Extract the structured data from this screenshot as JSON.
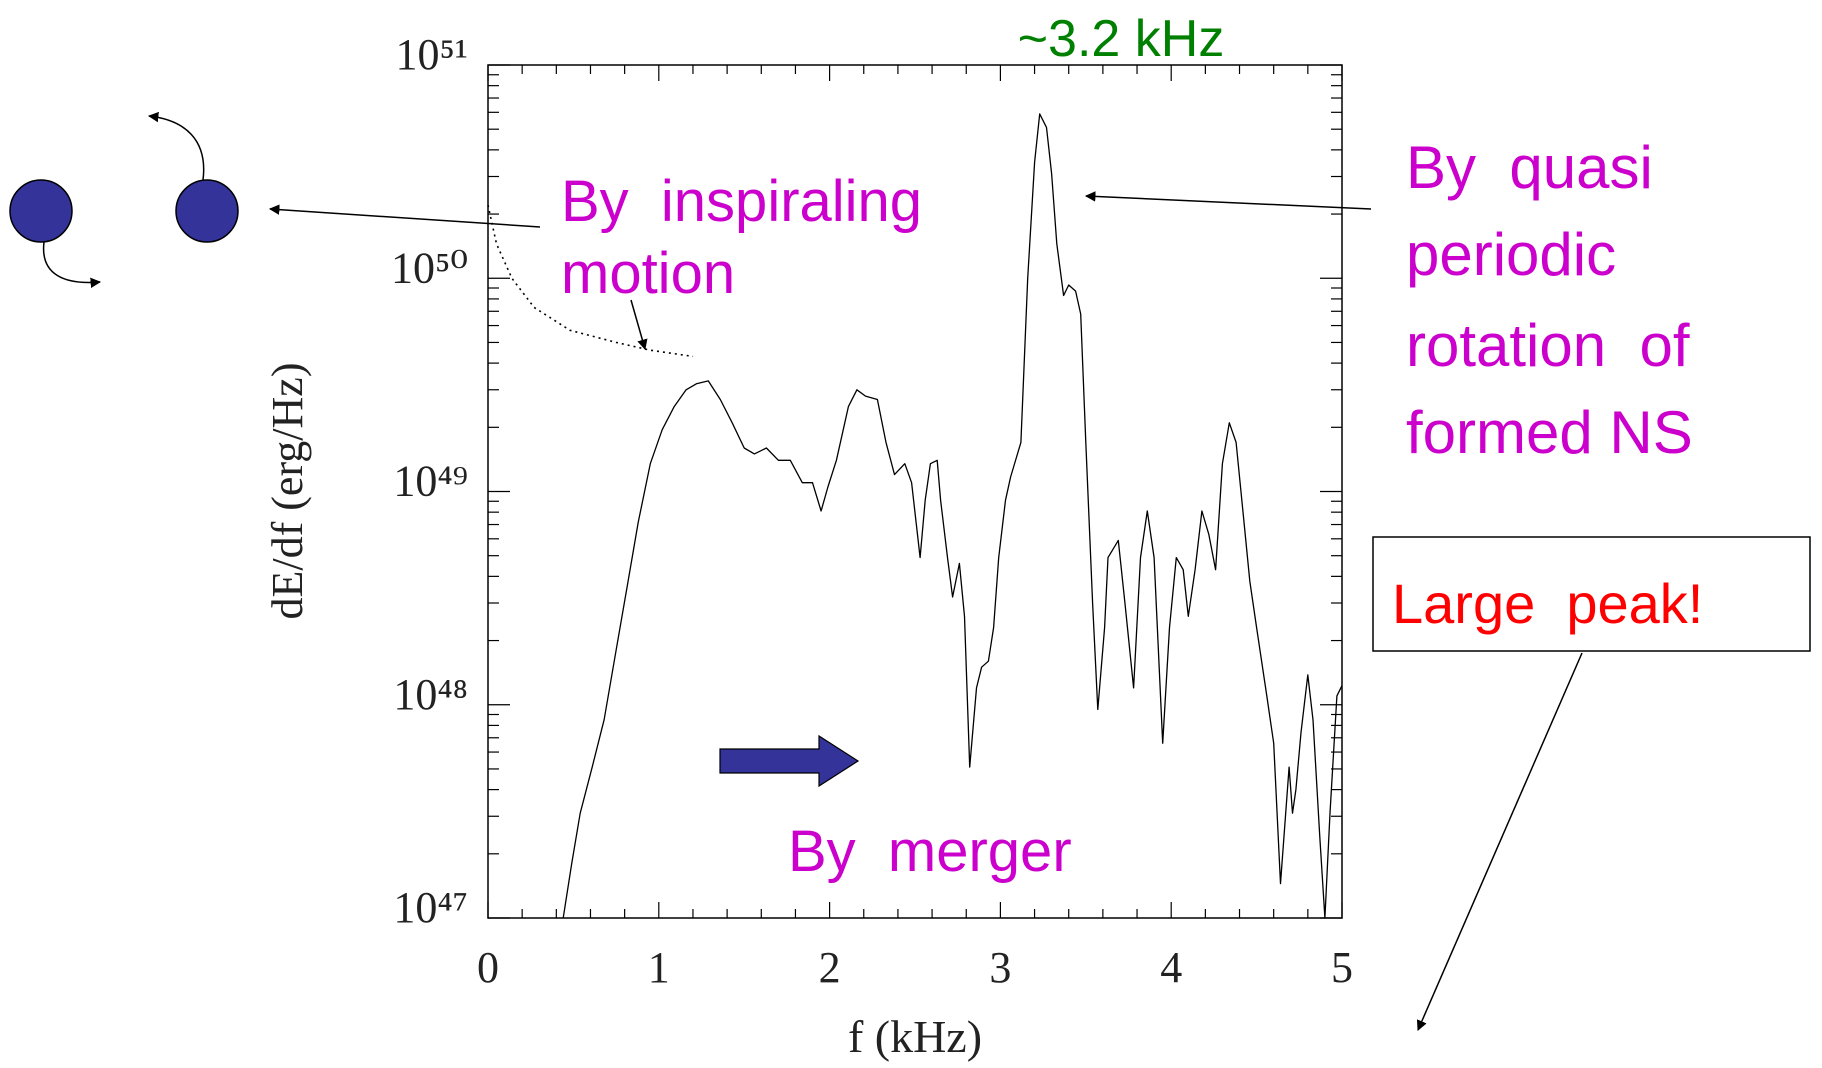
{
  "chart_data": {
    "type": "line",
    "xlabel": "f (kHz)",
    "ylabel": "dE/df (erg/Hz)",
    "xlim": [
      0,
      5
    ],
    "ylim": [
      1e+47,
      1e+51
    ],
    "log_y": true,
    "xticks": [
      0,
      1,
      2,
      3,
      4,
      5
    ],
    "xticks_minor": [
      0.2,
      0.4,
      0.6,
      0.8,
      1.2,
      1.4,
      1.6,
      1.8,
      2.2,
      2.4,
      2.6,
      2.8,
      3.2,
      3.4,
      3.6,
      3.8,
      4.2,
      4.4,
      4.6,
      4.8
    ],
    "yticks": [
      {
        "value": 1e+47,
        "label": "10⁴⁷"
      },
      {
        "value": 1e+48,
        "label": "10⁴⁸"
      },
      {
        "value": 1e+49,
        "label": "10⁴⁹"
      },
      {
        "value": 1e+50,
        "label": "10⁵⁰"
      },
      {
        "value": 1e+51,
        "label": "10⁵¹"
      }
    ],
    "yticks_minor": [
      2e+47,
      3e+47,
      4e+47,
      5e+47,
      6e+47,
      7e+47,
      8e+47,
      9e+47,
      2e+48,
      3e+48,
      4e+48,
      5e+48,
      6e+48,
      7e+48,
      8e+48,
      9e+48,
      2e+49,
      3e+49,
      4e+49,
      5e+49,
      6e+49,
      7e+49,
      8e+49,
      9e+49,
      2e+50,
      3e+50,
      4e+50,
      5e+50,
      6e+50,
      7e+50,
      8e+50,
      9e+50
    ],
    "series": [
      {
        "color": "#000000",
        "style": "solid",
        "x": [
          0.44,
          0.49,
          0.54,
          0.61,
          0.68,
          0.75,
          0.82,
          0.88,
          0.95,
          1.02,
          1.09,
          1.16,
          1.22,
          1.29,
          1.36,
          1.43,
          1.5,
          1.56,
          1.63,
          1.7,
          1.77,
          1.84,
          1.9,
          1.95,
          1.99,
          2.04,
          2.11,
          2.16,
          2.21,
          2.28,
          2.33,
          2.38,
          2.44,
          2.48,
          2.53,
          2.56,
          2.59,
          2.63,
          2.65,
          2.69,
          2.72,
          2.76,
          2.79,
          2.82,
          2.86,
          2.89,
          2.93,
          2.96,
          2.99,
          3.03,
          3.06,
          3.12,
          3.16,
          3.2,
          3.23,
          3.27,
          3.3,
          3.33,
          3.37,
          3.4,
          3.44,
          3.47,
          3.5,
          3.54,
          3.57,
          3.61,
          3.63,
          3.69,
          3.73,
          3.78,
          3.82,
          3.86,
          3.9,
          3.95,
          3.99,
          4.03,
          4.07,
          4.1,
          4.14,
          4.18,
          4.22,
          4.26,
          4.3,
          4.34,
          4.38,
          4.42,
          4.46,
          4.5,
          4.56,
          4.6,
          4.64,
          4.69,
          4.71,
          4.73,
          4.76,
          4.8,
          4.83,
          4.87,
          4.9,
          4.93,
          4.97,
          5.0
        ],
        "values": [
          1e+47,
          1.8e+47,
          3.1e+47,
          5.1e+47,
          8.5e+47,
          1.8e+48,
          3.8e+48,
          7.2e+48,
          1.35e+49,
          1.95e+49,
          2.5e+49,
          3e+49,
          3.2e+49,
          3.3e+49,
          2.7e+49,
          2.1e+49,
          1.6e+49,
          1.5e+49,
          1.6e+49,
          1.4e+49,
          1.4e+49,
          1.1e+49,
          1.1e+49,
          8.1e+48,
          1.05e+49,
          1.4e+49,
          2.5e+49,
          3e+49,
          2.8e+49,
          2.7e+49,
          1.7e+49,
          1.2e+49,
          1.35e+49,
          1.1e+49,
          4.9e+48,
          9.1e+48,
          1.35e+49,
          1.4e+49,
          9.1e+48,
          4.9e+48,
          3.2e+48,
          4.6e+48,
          2.6e+48,
          5.1e+47,
          1.2e+48,
          1.5e+48,
          1.6e+48,
          2.3e+48,
          4.9e+48,
          9.1e+48,
          1.17e+49,
          1.7e+49,
          1e+50,
          3.5e+50,
          5.9e+50,
          5.1e+50,
          3.1e+50,
          1.45e+50,
          8.3e+49,
          9.3e+49,
          8.7e+49,
          6.8e+49,
          1.7e+49,
          3e+48,
          9.5e+47,
          2.3e+48,
          4.9e+48,
          5.9e+48,
          2.95e+48,
          1.2e+48,
          4.9e+48,
          8.1e+48,
          4.9e+48,
          6.6e+47,
          2.3e+48,
          4.9e+48,
          4.3e+48,
          2.6e+48,
          4.3e+48,
          8.1e+48,
          6.3e+48,
          4.3e+48,
          1.35e+49,
          2.1e+49,
          1.7e+49,
          8.1e+48,
          3.8e+48,
          2.3e+48,
          1.1e+48,
          6.6e+47,
          1.45e+47,
          5.1e+47,
          3.1e+47,
          4e+47,
          7.4e+47,
          1.38e+48,
          8.5e+47,
          2.4e+47,
          1e+47,
          3.1e+47,
          1.1e+48,
          1.23e+48
        ]
      },
      {
        "color": "#000000",
        "style": "dotted",
        "x": [
          0.0,
          0.05,
          0.14,
          0.27,
          0.48,
          0.75,
          0.95,
          1.2
        ],
        "values": [
          2.2e+50,
          1.45e+50,
          1e+50,
          7.3e+49,
          5.7e+49,
          5e+49,
          4.6e+49,
          4.3e+49
        ]
      }
    ],
    "annotations": {
      "peak_frequency": "~3.2 kHz",
      "inspiral": [
        "By  inspiraling",
        "motion"
      ],
      "quasi_periodic": [
        "By  quasi",
        "periodic",
        "rotation  of",
        "formed NS"
      ],
      "large_peak": "Large  peak!",
      "merger": "By  merger"
    }
  }
}
